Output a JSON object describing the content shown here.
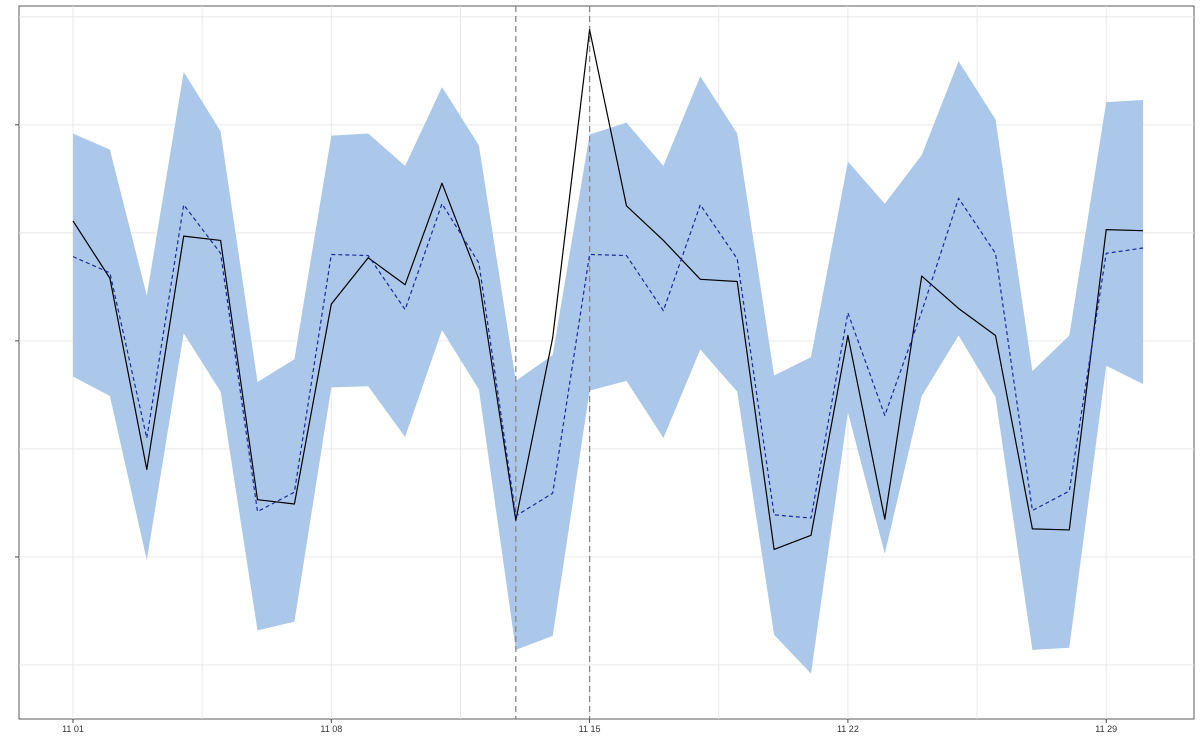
{
  "chart_data": {
    "type": "line",
    "title": "",
    "xlabel": "",
    "ylabel": "",
    "x": [
      "2000-11-01",
      "2000-11-02",
      "2000-11-03",
      "2000-11-04",
      "2000-11-05",
      "2000-11-06",
      "2000-11-07",
      "2000-11-08",
      "2000-11-09",
      "2000-11-10",
      "2000-11-11",
      "2000-11-12",
      "2000-11-13",
      "2000-11-14",
      "2000-11-15",
      "2000-11-16",
      "2000-11-17",
      "2000-11-18",
      "2000-11-19",
      "2000-11-20",
      "2000-11-21",
      "2000-11-22",
      "2000-11-23",
      "2000-11-24",
      "2000-11-25",
      "2000-11-26",
      "2000-11-27",
      "2000-11-28",
      "2000-11-29",
      "2000-11-30"
    ],
    "x_tick_values": [
      "2000-11-01",
      "2000-11-08",
      "2000-11-15",
      "2000-11-22",
      "2000-11-29"
    ],
    "x_tick_labels": [
      "11 01",
      "11 08",
      "11 15",
      "11 22",
      "11 29"
    ],
    "ylim": [
      -2.5,
      4.1
    ],
    "y_ticks": [
      -1,
      1,
      3
    ],
    "series": [
      {
        "style": "solid",
        "values": [
          2.11,
          1.58,
          -0.19,
          1.97,
          1.93,
          -0.47,
          -0.51,
          1.34,
          1.77,
          1.52,
          2.46,
          1.57,
          -0.66,
          1.03,
          3.88,
          2.25,
          1.93,
          1.57,
          1.55,
          -0.93,
          -0.8,
          1.05,
          -0.65,
          1.6,
          1.3,
          1.05,
          -0.74,
          -0.75,
          2.03,
          2.02
        ]
      },
      {
        "style": "dashed",
        "values": [
          1.78,
          1.63,
          0.1,
          2.26,
          1.81,
          -0.58,
          -0.4,
          1.8,
          1.79,
          1.29,
          2.27,
          1.72,
          -0.62,
          -0.41,
          1.8,
          1.79,
          1.28,
          2.26,
          1.76,
          -0.61,
          -0.64,
          1.26,
          0.31,
          1.27,
          2.32,
          1.81,
          -0.57,
          -0.39,
          1.81,
          1.86
        ]
      }
    ],
    "band": {
      "upper": [
        2.92,
        2.77,
        1.42,
        3.49,
        2.94,
        0.62,
        0.83,
        2.9,
        2.92,
        2.62,
        3.35,
        2.81,
        0.63,
        0.87,
        2.91,
        3.02,
        2.62,
        3.45,
        2.92,
        0.68,
        0.85,
        2.66,
        2.27,
        2.72,
        3.59,
        3.05,
        0.72,
        1.05,
        3.21,
        3.23
      ],
      "lower": [
        0.67,
        0.49,
        -1.03,
        1.07,
        0.53,
        -1.68,
        -1.6,
        0.57,
        0.58,
        0.11,
        1.1,
        0.55,
        -1.86,
        -1.73,
        0.54,
        0.63,
        0.1,
        0.92,
        0.53,
        -1.72,
        -2.08,
        0.34,
        -0.97,
        0.49,
        1.05,
        0.48,
        -1.86,
        -1.84,
        0.77,
        0.6
      ],
      "color": "#abc8ea"
    },
    "vlines": [
      "2000-11-13",
      "2000-11-15"
    ],
    "grid": true,
    "colors": {
      "solid": "#000000",
      "dashed": "#1a2a9c",
      "grid": "#e6e6e6",
      "vline": "#888888"
    }
  }
}
